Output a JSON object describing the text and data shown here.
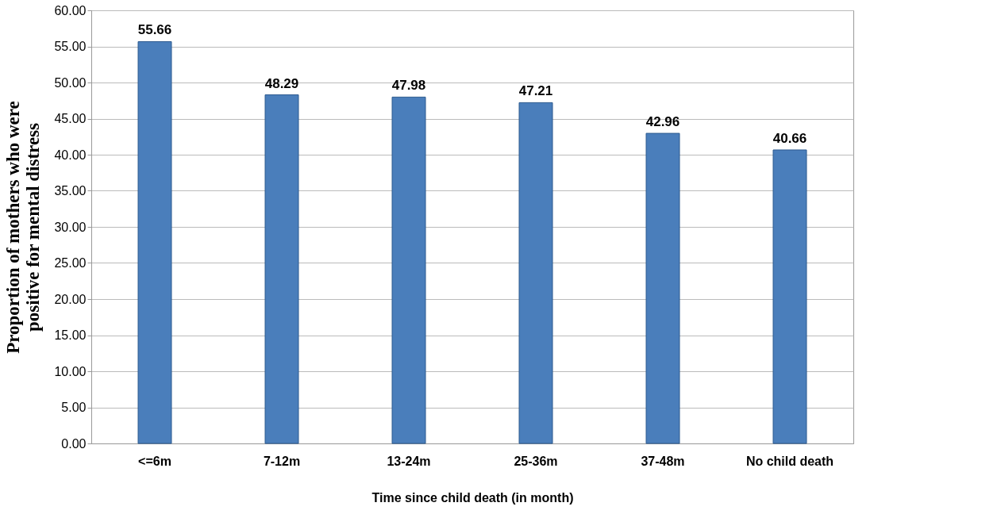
{
  "chart_data": {
    "type": "bar",
    "categories": [
      "<=6m",
      "7-12m",
      "13-24m",
      "25-36m",
      "37-48m",
      "No child death"
    ],
    "series": [
      {
        "color": "#4a7ebb",
        "values": [
          55.66,
          48.29,
          47.98,
          47.21,
          42.96,
          40.66
        ]
      }
    ],
    "xlabel": "Time since child death (in month)",
    "ylabel": "Proportion of mothers who were positive for mental distress",
    "ylim": [
      0,
      60
    ],
    "yticks": [
      {
        "value": 0,
        "label": "0.00"
      },
      {
        "value": 5,
        "label": "5.00"
      },
      {
        "value": 10,
        "label": "10.00"
      },
      {
        "value": 15,
        "label": "15.00"
      },
      {
        "value": 20,
        "label": "20.00"
      },
      {
        "value": 25,
        "label": "25.00"
      },
      {
        "value": 30,
        "label": "30.00"
      },
      {
        "value": 35,
        "label": "35.00"
      },
      {
        "value": 40,
        "label": "40.00"
      },
      {
        "value": 45,
        "label": "45.00"
      },
      {
        "value": 50,
        "label": "50.00"
      },
      {
        "value": 55,
        "label": "55.00"
      },
      {
        "value": 60,
        "label": "60.00"
      }
    ],
    "grid": "y",
    "data_labels": true
  }
}
